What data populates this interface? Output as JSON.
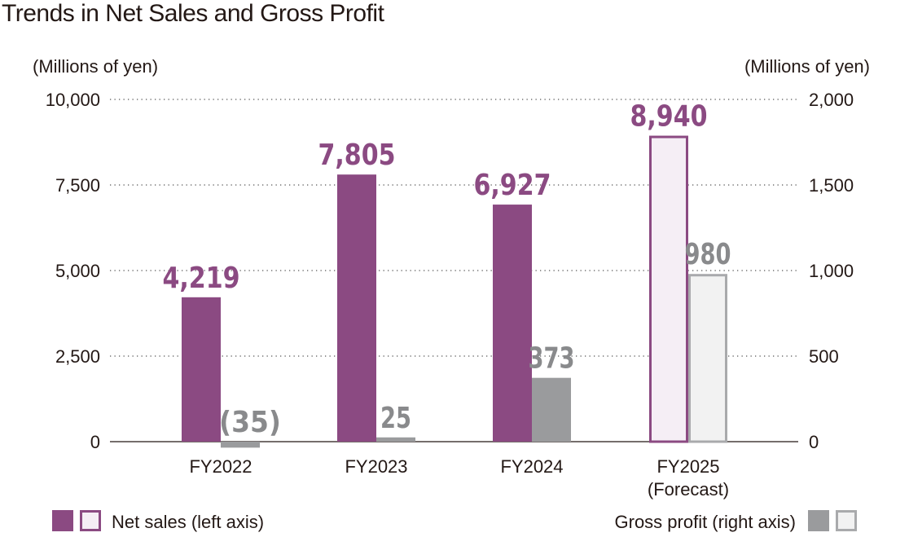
{
  "chart_data": {
    "type": "bar",
    "title": "Trends in Net Sales and Gross Profit",
    "categories": [
      "FY2022",
      "FY2023",
      "FY2024",
      "FY2025"
    ],
    "category_sublabels": [
      "",
      "",
      "",
      "(Forecast)"
    ],
    "left_axis": {
      "unit_label": "(Millions of yen)",
      "ylim": [
        0,
        10000
      ],
      "ticks": [
        "0",
        "2,500",
        "5,000",
        "7,500",
        "10,000"
      ],
      "tick_values": [
        0,
        2500,
        5000,
        7500,
        10000
      ]
    },
    "right_axis": {
      "unit_label": "(Millions of yen)",
      "ylim": [
        0,
        2000
      ],
      "ticks": [
        "0",
        "500",
        "1,000",
        "1,500",
        "2,000"
      ],
      "tick_values": [
        0,
        500,
        1000,
        1500,
        2000
      ]
    },
    "grid": "dotted horizontal",
    "series": [
      {
        "name": "Net sales (left axis)",
        "axis": "left",
        "values": [
          4219,
          7805,
          6927,
          8940
        ],
        "labels": [
          "4,219",
          "7,805",
          "6,927",
          "8,940"
        ],
        "color": "#8b4a82",
        "forecast_fill": "#f5eef5"
      },
      {
        "name": "Gross profit (right axis)",
        "axis": "right",
        "values": [
          -35,
          25,
          373,
          980
        ],
        "labels": [
          "(35)",
          "25",
          "373",
          "980"
        ],
        "color": "#9a9b9d",
        "label_color": "#898a8c",
        "forecast_fill": "#f2f2f2",
        "forecast_border": "#a9aaac"
      }
    ],
    "forecast_index": 3,
    "legend_placement": "bottom"
  }
}
